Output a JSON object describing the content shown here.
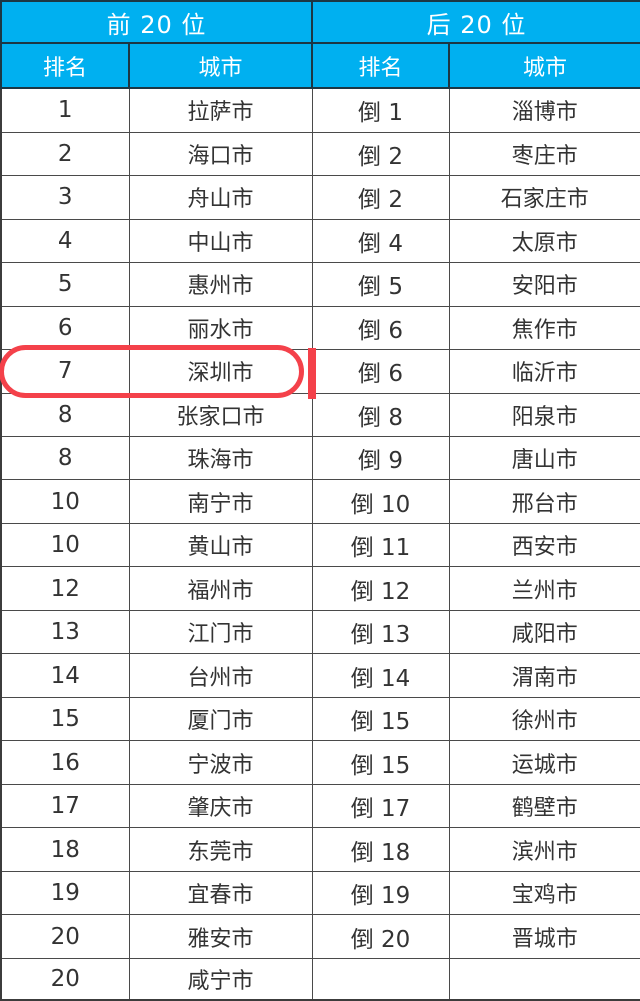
{
  "table": {
    "group_headers": [
      "前 20 位",
      "后 20 位"
    ],
    "columns": [
      "排名",
      "城市",
      "排名",
      "城市"
    ],
    "rows": [
      {
        "left_rank": "1",
        "left_city": "拉萨市",
        "right_rank": "倒 1",
        "right_city": "淄博市"
      },
      {
        "left_rank": "2",
        "left_city": "海口市",
        "right_rank": "倒 2",
        "right_city": "枣庄市"
      },
      {
        "left_rank": "3",
        "left_city": "舟山市",
        "right_rank": "倒 2",
        "right_city": "石家庄市"
      },
      {
        "left_rank": "4",
        "left_city": "中山市",
        "right_rank": "倒 4",
        "right_city": "太原市"
      },
      {
        "left_rank": "5",
        "left_city": "惠州市",
        "right_rank": "倒 5",
        "right_city": "安阳市"
      },
      {
        "left_rank": "6",
        "left_city": "丽水市",
        "right_rank": "倒 6",
        "right_city": "焦作市"
      },
      {
        "left_rank": "7",
        "left_city": "深圳市",
        "right_rank": "倒 6",
        "right_city": "临沂市"
      },
      {
        "left_rank": "8",
        "left_city": "张家口市",
        "right_rank": "倒 8",
        "right_city": "阳泉市"
      },
      {
        "left_rank": "8",
        "left_city": "珠海市",
        "right_rank": "倒 9",
        "right_city": "唐山市"
      },
      {
        "left_rank": "10",
        "left_city": "南宁市",
        "right_rank": "倒 10",
        "right_city": "邢台市"
      },
      {
        "left_rank": "10",
        "left_city": "黄山市",
        "right_rank": "倒 11",
        "right_city": "西安市"
      },
      {
        "left_rank": "12",
        "left_city": "福州市",
        "right_rank": "倒 12",
        "right_city": "兰州市"
      },
      {
        "left_rank": "13",
        "left_city": "江门市",
        "right_rank": "倒 13",
        "right_city": "咸阳市"
      },
      {
        "left_rank": "14",
        "left_city": "台州市",
        "right_rank": "倒 14",
        "right_city": "渭南市"
      },
      {
        "left_rank": "15",
        "left_city": "厦门市",
        "right_rank": "倒 15",
        "right_city": "徐州市"
      },
      {
        "left_rank": "16",
        "left_city": "宁波市",
        "right_rank": "倒 15",
        "right_city": "运城市"
      },
      {
        "left_rank": "17",
        "left_city": "肇庆市",
        "right_rank": "倒 17",
        "right_city": "鹤壁市"
      },
      {
        "left_rank": "18",
        "left_city": "东莞市",
        "right_rank": "倒 18",
        "right_city": "滨州市"
      },
      {
        "left_rank": "19",
        "left_city": "宜春市",
        "right_rank": "倒 19",
        "right_city": "宝鸡市"
      },
      {
        "left_rank": "20",
        "left_city": "雅安市",
        "right_rank": "倒 20",
        "right_city": "晋城市"
      },
      {
        "left_rank": "20",
        "left_city": "咸宁市",
        "right_rank": "",
        "right_city": ""
      }
    ],
    "highlight": {
      "row_index": 6,
      "highlighted_rank": "7",
      "highlighted_city": "深圳市"
    }
  },
  "colors": {
    "header_bg": "#00B0F0",
    "header_text": "#FFFFFF",
    "body_text": "#333333",
    "grid_line": "#4A4A4A",
    "highlight_red": "#F4414A"
  }
}
